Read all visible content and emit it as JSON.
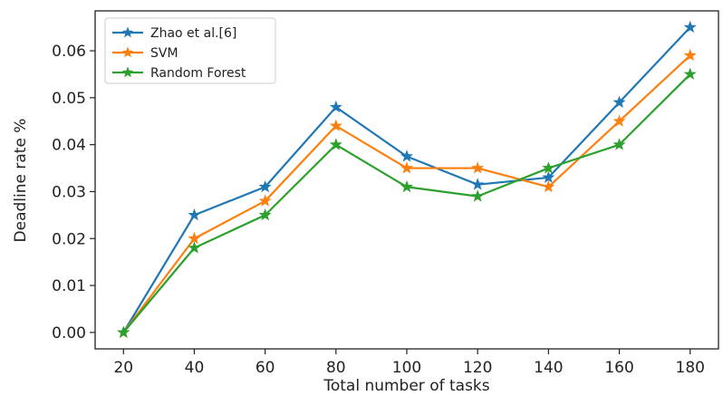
{
  "chart_data": {
    "type": "line",
    "xlabel": "Total number of tasks",
    "ylabel": "Deadline rate %",
    "x": [
      20,
      40,
      60,
      80,
      100,
      120,
      140,
      160,
      180
    ],
    "xlim": [
      12,
      188
    ],
    "ylim": [
      -0.0035,
      0.0685
    ],
    "xticks": [
      20,
      40,
      60,
      80,
      100,
      120,
      140,
      160,
      180
    ],
    "yticks": [
      0.0,
      0.01,
      0.02,
      0.03,
      0.04,
      0.05,
      0.06
    ],
    "ytick_labels": [
      "0.00",
      "0.01",
      "0.02",
      "0.03",
      "0.04",
      "0.05",
      "0.06"
    ],
    "grid": false,
    "legend_position": "top-left",
    "marker": "star",
    "series": [
      {
        "name": "Zhao et al.[6]",
        "color": "#1f77b4",
        "values": [
          0.0,
          0.025,
          0.031,
          0.048,
          0.0375,
          0.0315,
          0.033,
          0.049,
          0.065
        ]
      },
      {
        "name": "SVM",
        "color": "#ff7f0e",
        "values": [
          0.0,
          0.02,
          0.028,
          0.044,
          0.035,
          0.035,
          0.031,
          0.045,
          0.059
        ]
      },
      {
        "name": "Random Forest",
        "color": "#2ca02c",
        "values": [
          0.0,
          0.018,
          0.025,
          0.04,
          0.031,
          0.029,
          0.035,
          0.04,
          0.055
        ]
      }
    ]
  }
}
